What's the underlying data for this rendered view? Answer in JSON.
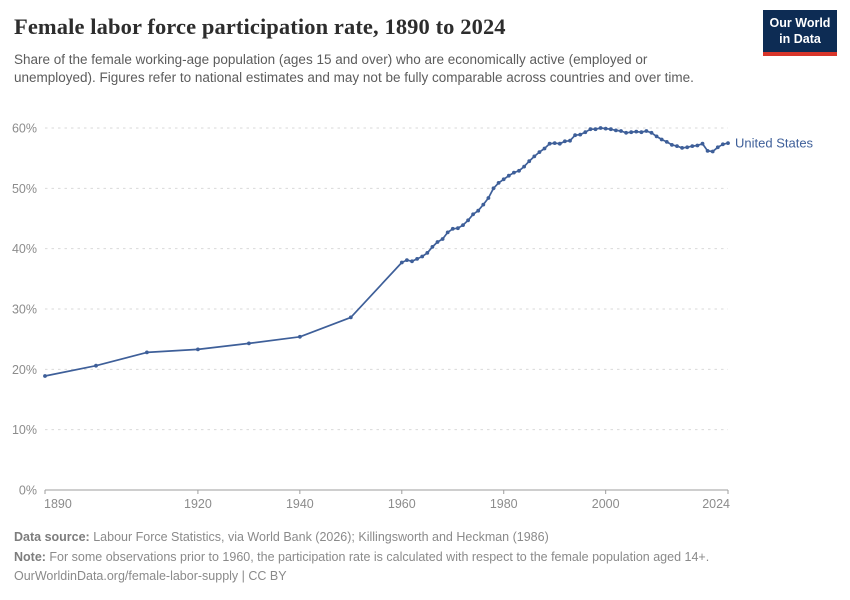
{
  "header": {
    "title": "Female labor force participation rate, 1890 to 2024",
    "subtitle": "Share of the female working-age population (ages 15 and over) who are economically active (employed or unemployed). Figures refer to national estimates and may not be fully comparable across countries and over time."
  },
  "logo": {
    "line1": "Our World",
    "line2": "in Data",
    "bg_color": "#0d2c54",
    "stripe_color": "#d8352a",
    "text_color": "#ffffff"
  },
  "chart_data": {
    "type": "line",
    "title": "Female labor force participation rate, 1890 to 2024",
    "xlabel": "",
    "ylabel": "",
    "x_ticks": [
      1890,
      1920,
      1940,
      1960,
      1980,
      2000,
      2024
    ],
    "y_ticks": [
      0,
      10,
      20,
      30,
      40,
      50,
      60
    ],
    "y_tick_suffix": "%",
    "xlim": [
      1890,
      2024
    ],
    "ylim": [
      0,
      62
    ],
    "grid": "horizontal-dashed",
    "legend_position": "end-of-line-label",
    "axis_color": "#9e9e9e",
    "gridline_color": "#d9d9d9",
    "series": [
      {
        "name": "United States",
        "color": "#3e5f99",
        "points": [
          [
            1890,
            18.9
          ],
          [
            1900,
            20.6
          ],
          [
            1910,
            22.8
          ],
          [
            1920,
            23.3
          ],
          [
            1930,
            24.3
          ],
          [
            1940,
            25.4
          ],
          [
            1950,
            28.6
          ],
          [
            1960,
            37.7
          ],
          [
            1961,
            38.1
          ],
          [
            1962,
            37.9
          ],
          [
            1963,
            38.3
          ],
          [
            1964,
            38.7
          ],
          [
            1965,
            39.3
          ],
          [
            1966,
            40.3
          ],
          [
            1967,
            41.1
          ],
          [
            1968,
            41.6
          ],
          [
            1969,
            42.7
          ],
          [
            1970,
            43.3
          ],
          [
            1971,
            43.4
          ],
          [
            1972,
            43.9
          ],
          [
            1973,
            44.7
          ],
          [
            1974,
            45.7
          ],
          [
            1975,
            46.3
          ],
          [
            1976,
            47.3
          ],
          [
            1977,
            48.4
          ],
          [
            1978,
            50.0
          ],
          [
            1979,
            50.9
          ],
          [
            1980,
            51.5
          ],
          [
            1981,
            52.1
          ],
          [
            1982,
            52.6
          ],
          [
            1983,
            52.9
          ],
          [
            1984,
            53.6
          ],
          [
            1985,
            54.5
          ],
          [
            1986,
            55.3
          ],
          [
            1987,
            56.0
          ],
          [
            1988,
            56.6
          ],
          [
            1989,
            57.4
          ],
          [
            1990,
            57.5
          ],
          [
            1991,
            57.4
          ],
          [
            1992,
            57.8
          ],
          [
            1993,
            57.9
          ],
          [
            1994,
            58.8
          ],
          [
            1995,
            58.9
          ],
          [
            1996,
            59.3
          ],
          [
            1997,
            59.8
          ],
          [
            1998,
            59.8
          ],
          [
            1999,
            60.0
          ],
          [
            2000,
            59.9
          ],
          [
            2001,
            59.8
          ],
          [
            2002,
            59.6
          ],
          [
            2003,
            59.5
          ],
          [
            2004,
            59.2
          ],
          [
            2005,
            59.3
          ],
          [
            2006,
            59.4
          ],
          [
            2007,
            59.3
          ],
          [
            2008,
            59.5
          ],
          [
            2009,
            59.2
          ],
          [
            2010,
            58.6
          ],
          [
            2011,
            58.1
          ],
          [
            2012,
            57.7
          ],
          [
            2013,
            57.2
          ],
          [
            2014,
            57.0
          ],
          [
            2015,
            56.7
          ],
          [
            2016,
            56.8
          ],
          [
            2017,
            57.0
          ],
          [
            2018,
            57.1
          ],
          [
            2019,
            57.4
          ],
          [
            2020,
            56.2
          ],
          [
            2021,
            56.1
          ],
          [
            2022,
            56.8
          ],
          [
            2023,
            57.3
          ],
          [
            2024,
            57.5
          ]
        ]
      }
    ]
  },
  "footer": {
    "data_source_label": "Data source:",
    "data_source_text": " Labour Force Statistics, via World Bank (2026); Killingsworth and Heckman (1986)",
    "note_label": "Note:",
    "note_text": " For some observations prior to 1960, the participation rate is calculated with respect to the female population aged 14+.",
    "license_line": "OurWorldinData.org/female-labor-supply | CC BY"
  }
}
